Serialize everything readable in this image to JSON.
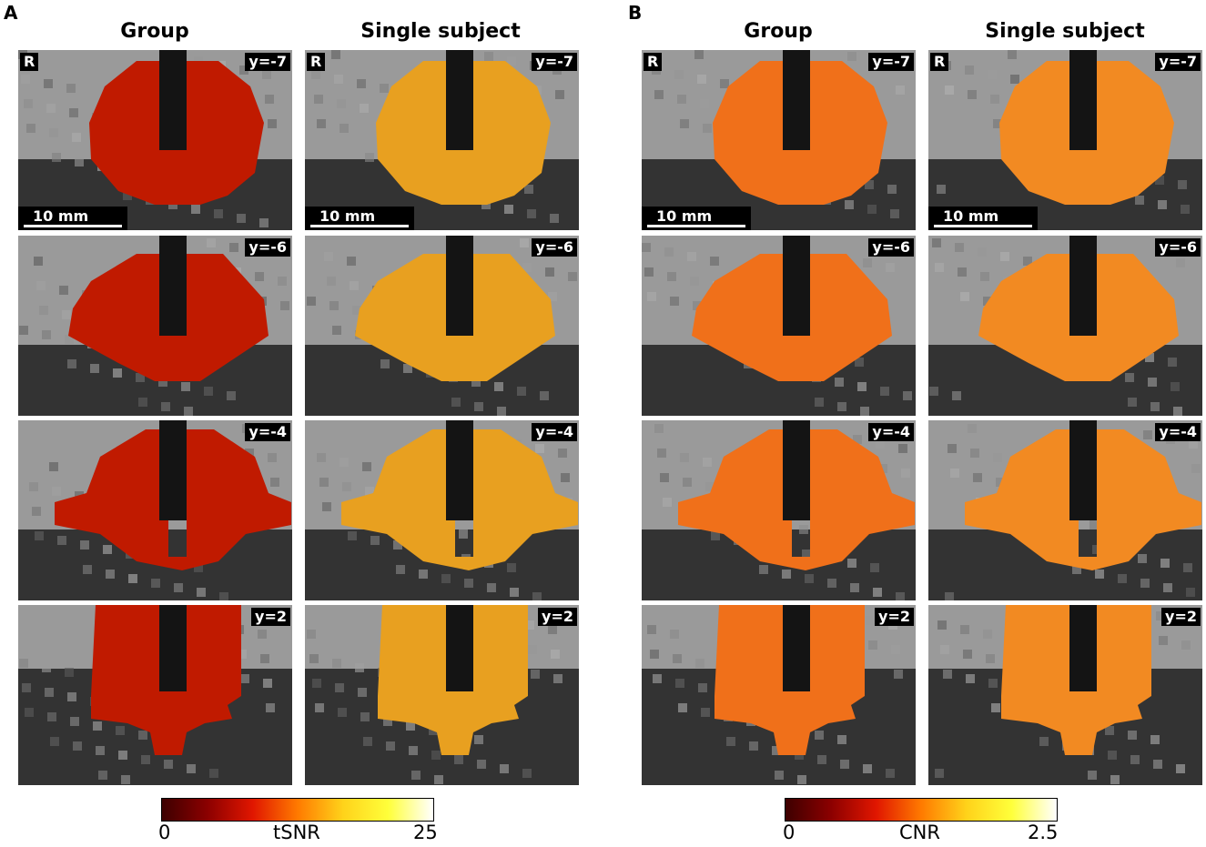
{
  "panel_a": {
    "letter": "A",
    "col_group": "Group",
    "col_single": "Single subject",
    "colorbar": {
      "min": "0",
      "label": "tSNR",
      "max": "25",
      "colors": [
        "#3d0000",
        "#8b0000",
        "#e01600",
        "#ff7a00",
        "#ffd21a",
        "#ffff3a",
        "#ffffff"
      ]
    }
  },
  "panel_b": {
    "letter": "B",
    "col_group": "Group",
    "col_single": "Single subject",
    "colorbar": {
      "min": "0",
      "label": "CNR",
      "max": "2.5",
      "colors": [
        "#3d0000",
        "#8b0000",
        "#e01600",
        "#ff7a00",
        "#ffd21a",
        "#ffff3a",
        "#ffffff"
      ]
    }
  },
  "orientation_label": "R",
  "scale_bar_label": "10 mm",
  "slices": [
    "y=-7",
    "y=-6",
    "y=-4",
    "y=2"
  ],
  "overlay_colors": {
    "a_group": "#c01a00",
    "a_single": "#e8a020",
    "b_group": "#f0701a",
    "b_single": "#f28a22"
  }
}
